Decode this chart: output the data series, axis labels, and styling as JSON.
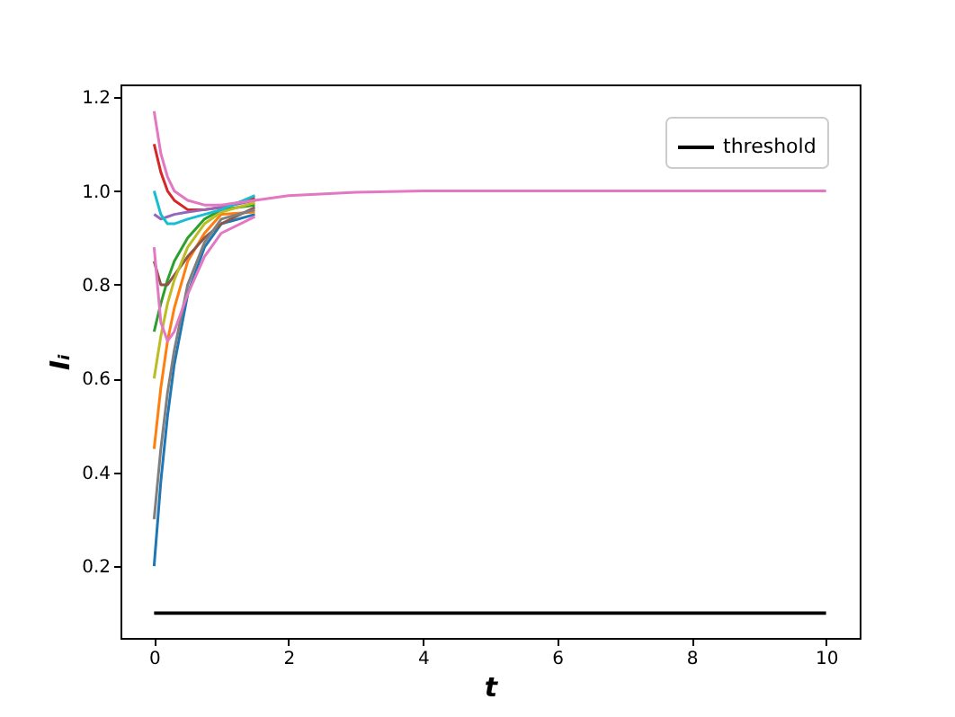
{
  "chart_data": {
    "type": "line",
    "xlabel": "t",
    "ylabel": "Iᵢ",
    "x": [
      0,
      0.1,
      0.2,
      0.3,
      0.5,
      0.75,
      1,
      1.5,
      2,
      3,
      4,
      6,
      10
    ],
    "series": [
      {
        "color": "#1f77b4",
        "values": [
          0.2,
          0.38,
          0.52,
          0.63,
          0.78,
          0.88,
          0.93,
          0.95,
          null,
          null,
          null,
          null,
          null
        ]
      },
      {
        "color": "#ff7f0e",
        "values": [
          0.45,
          0.58,
          0.68,
          0.75,
          0.85,
          0.91,
          0.95,
          0.955,
          null,
          null,
          null,
          null,
          null
        ]
      },
      {
        "color": "#2ca02c",
        "values": [
          0.7,
          0.76,
          0.81,
          0.85,
          0.9,
          0.94,
          0.96,
          0.97,
          null,
          null,
          null,
          null,
          null
        ]
      },
      {
        "color": "#d62728",
        "values": [
          1.1,
          1.04,
          1.0,
          0.98,
          0.96,
          0.96,
          0.965,
          0.985,
          null,
          null,
          null,
          null,
          null
        ]
      },
      {
        "color": "#9467bd",
        "values": [
          0.95,
          0.94,
          0.945,
          0.95,
          0.955,
          0.96,
          0.965,
          0.98,
          null,
          null,
          null,
          null,
          null
        ]
      },
      {
        "color": "#8c564b",
        "values": [
          0.85,
          0.8,
          0.8,
          0.82,
          0.86,
          0.9,
          0.93,
          0.965,
          null,
          null,
          null,
          null,
          null
        ]
      },
      {
        "color": "#7f7f7f",
        "values": [
          0.3,
          0.45,
          0.57,
          0.66,
          0.8,
          0.89,
          0.94,
          0.96,
          null,
          null,
          null,
          null,
          null
        ]
      },
      {
        "color": "#bcbd22",
        "values": [
          0.6,
          0.69,
          0.76,
          0.81,
          0.88,
          0.93,
          0.955,
          0.975,
          null,
          null,
          null,
          null,
          null
        ]
      },
      {
        "color": "#17becf",
        "values": [
          1.0,
          0.95,
          0.93,
          0.93,
          0.94,
          0.95,
          0.96,
          0.99,
          null,
          null,
          null,
          null,
          null
        ]
      },
      {
        "color": "#e377c2",
        "values": [
          0.88,
          0.72,
          0.68,
          0.7,
          0.78,
          0.86,
          0.91,
          0.945,
          null,
          null,
          null,
          null,
          null
        ]
      },
      {
        "color": "#e377c2",
        "values": [
          1.17,
          1.08,
          1.03,
          1.0,
          0.98,
          0.97,
          0.97,
          0.98,
          0.99,
          0.997,
          1.0,
          1.0,
          1.0
        ]
      }
    ],
    "ref_lines": [
      {
        "axis": "y",
        "value": 0.1,
        "label": "threshold",
        "color": "#000000",
        "line_style": "solid"
      }
    ],
    "xlim": [
      -0.5,
      10.5
    ],
    "xticks": [
      0,
      2,
      4,
      6,
      8,
      10
    ],
    "ylim": [
      0.047,
      1.227
    ],
    "yticks": [
      0.2,
      0.4,
      0.6,
      0.8,
      {
        "value": 1,
        "label": "1.0"
      },
      1.2
    ],
    "grid": false,
    "legend": "top right",
    "marker": "none",
    "line_style": "solid"
  }
}
